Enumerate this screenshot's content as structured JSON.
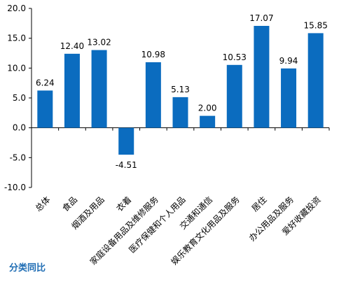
{
  "footer": {
    "title": "分类同比"
  },
  "colors": {
    "bar": "#0b6cbf",
    "axis": "#000000",
    "text": "#000000",
    "title": "#1f6db4"
  },
  "chart_data": {
    "type": "bar",
    "title": "分类同比",
    "xlabel": "",
    "ylabel": "",
    "ylim": [
      -10.0,
      20.0
    ],
    "y_ticks": [
      "-10.0",
      "-5.0",
      "0.0",
      "5.0",
      "10.0",
      "15.0",
      "20.0"
    ],
    "grid": false,
    "legend": "none",
    "categories": [
      "总体",
      "食品",
      "烟酒及用品",
      "衣着",
      "家庭设备用品及维修服务",
      "医疗保健和个人用品",
      "交通和通信",
      "娱乐教育文化用品及服务",
      "居住",
      "办公用品及服务",
      "爱好收藏投资"
    ],
    "values": [
      6.24,
      12.4,
      13.02,
      -4.51,
      10.98,
      5.13,
      2.0,
      10.53,
      17.07,
      9.94,
      15.85
    ],
    "value_labels": [
      "6.24",
      "12.40",
      "13.02",
      "-4.51",
      "10.98",
      "5.13",
      "2.00",
      "10.53",
      "17.07",
      "9.94",
      "15.85"
    ]
  }
}
